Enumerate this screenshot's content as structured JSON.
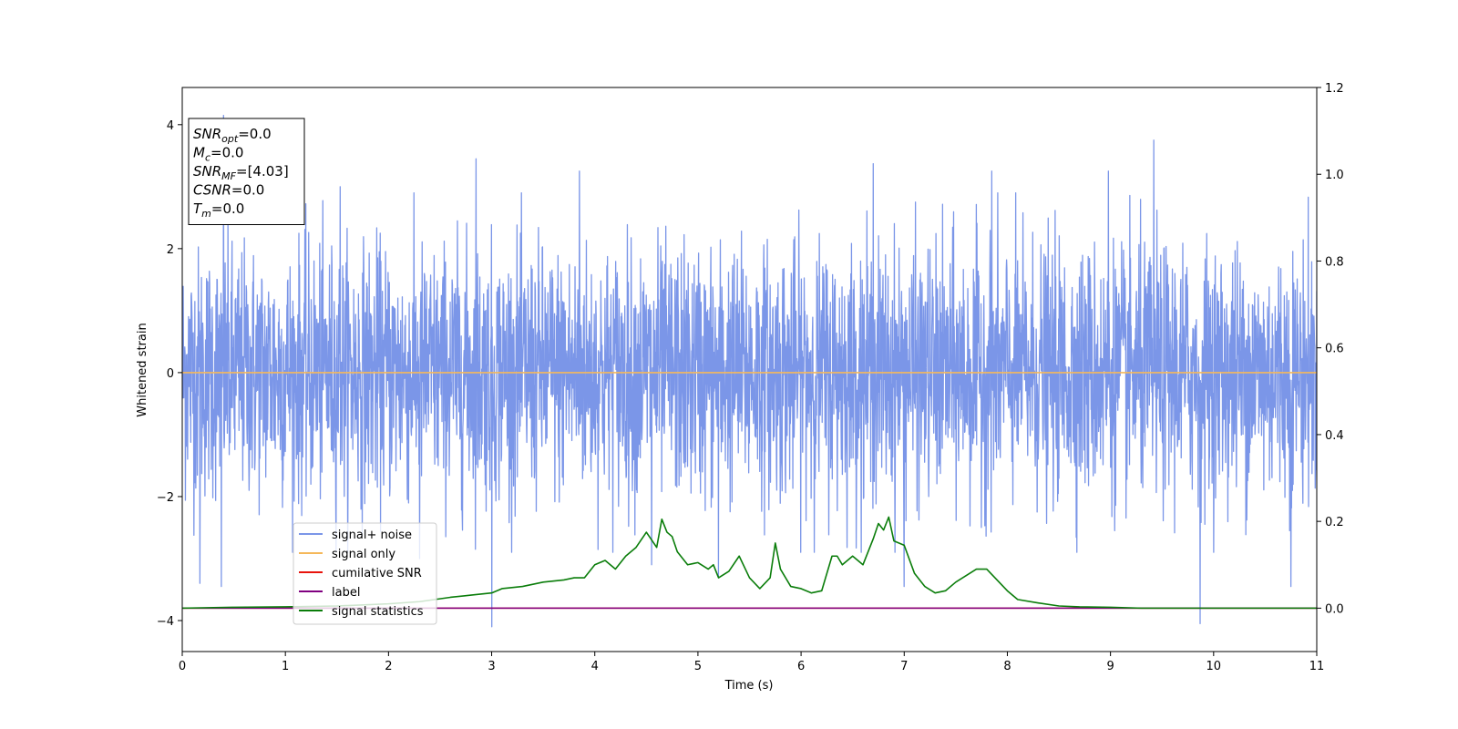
{
  "chart_data": {
    "type": "line",
    "title": "",
    "xlabel": "Time (s)",
    "ylabel": "Whitened strain",
    "xlim": [
      0,
      11
    ],
    "ylim": [
      -4.5,
      4.6
    ],
    "y2lim": [
      -0.1,
      1.2
    ],
    "grid": false,
    "legend_position": "lower-left",
    "x_ticks": [
      "0",
      "1",
      "2",
      "3",
      "4",
      "5",
      "6",
      "7",
      "8",
      "9",
      "10",
      "11"
    ],
    "y_ticks": [
      {
        "value": -4,
        "label": "−4"
      },
      {
        "value": -2,
        "label": "−2"
      },
      {
        "value": 0,
        "label": "0"
      },
      {
        "value": 2,
        "label": "2"
      },
      {
        "value": 4,
        "label": "4"
      }
    ],
    "y2_ticks": [
      "0.0",
      "0.2",
      "0.4",
      "0.6",
      "0.8",
      "1.0",
      "1.2"
    ],
    "stats_box": [
      {
        "symbol": "SNR",
        "sub": "opt",
        "value": "=0.0"
      },
      {
        "symbol": "M",
        "sub": "c",
        "value": "=0.0"
      },
      {
        "symbol": "SNR",
        "sub": "MF",
        "value": "=[4.03]"
      },
      {
        "symbol": "CSNR",
        "sub": "",
        "value": "=0.0"
      },
      {
        "symbol": "T",
        "sub": "m",
        "value": "=0.0"
      }
    ],
    "series": [
      {
        "name": "signal+ noise",
        "color": "#7b96e8",
        "axis": "left",
        "kind": "noise",
        "band_typical": 1.8,
        "peaks": [
          {
            "x": 0.4,
            "y": 4.15
          },
          {
            "x": 0.17,
            "y": -3.4
          },
          {
            "x": 0.38,
            "y": -3.45
          },
          {
            "x": 2.85,
            "y": 3.45
          },
          {
            "x": 3.0,
            "y": -4.1
          },
          {
            "x": 6.7,
            "y": 3.37
          },
          {
            "x": 9.42,
            "y": 3.75
          },
          {
            "x": 9.87,
            "y": -4.05
          },
          {
            "x": 7.0,
            "y": -3.45
          },
          {
            "x": 10.75,
            "y": -3.45
          },
          {
            "x": 1.53,
            "y": 3.0
          },
          {
            "x": 3.85,
            "y": 3.25
          },
          {
            "x": 7.85,
            "y": 3.25
          },
          {
            "x": 8.98,
            "y": 3.25
          },
          {
            "x": 4.55,
            "y": -3.1
          },
          {
            "x": 2.3,
            "y": -3.0
          },
          {
            "x": 5.2,
            "y": -3.3
          }
        ]
      },
      {
        "name": "signal only",
        "color": "#f5b85a",
        "axis": "left",
        "x": [
          0,
          11
        ],
        "y": [
          0,
          0
        ]
      },
      {
        "name": "cumilative SNR",
        "color": "#e8140c",
        "axis": "right",
        "x": [
          0,
          11
        ],
        "y": [
          0.0,
          0.0
        ]
      },
      {
        "name": "label",
        "color": "#800080",
        "axis": "right",
        "x": [
          0,
          11
        ],
        "y": [
          0.0,
          0.0
        ]
      },
      {
        "name": "signal statistics",
        "color": "#0a7d0a",
        "axis": "right",
        "x": [
          0,
          0.5,
          1.0,
          1.5,
          2.0,
          2.3,
          2.6,
          2.8,
          3.0,
          3.1,
          3.3,
          3.5,
          3.7,
          3.8,
          3.9,
          4.0,
          4.1,
          4.2,
          4.3,
          4.4,
          4.5,
          4.6,
          4.65,
          4.7,
          4.75,
          4.8,
          4.9,
          5.0,
          5.1,
          5.15,
          5.2,
          5.3,
          5.4,
          5.5,
          5.6,
          5.7,
          5.75,
          5.8,
          5.9,
          6.0,
          6.1,
          6.2,
          6.3,
          6.35,
          6.4,
          6.5,
          6.6,
          6.7,
          6.75,
          6.8,
          6.85,
          6.9,
          7.0,
          7.1,
          7.2,
          7.3,
          7.4,
          7.5,
          7.6,
          7.7,
          7.8,
          7.9,
          8.0,
          8.1,
          8.3,
          8.5,
          8.7,
          9.0,
          9.3,
          10.0,
          11.0
        ],
        "y": [
          0.0,
          0.002,
          0.003,
          0.005,
          0.01,
          0.015,
          0.025,
          0.03,
          0.035,
          0.045,
          0.05,
          0.06,
          0.065,
          0.07,
          0.07,
          0.1,
          0.11,
          0.09,
          0.12,
          0.14,
          0.175,
          0.14,
          0.205,
          0.175,
          0.165,
          0.13,
          0.1,
          0.105,
          0.09,
          0.1,
          0.07,
          0.085,
          0.12,
          0.07,
          0.045,
          0.07,
          0.15,
          0.09,
          0.05,
          0.045,
          0.035,
          0.04,
          0.12,
          0.12,
          0.1,
          0.12,
          0.1,
          0.16,
          0.195,
          0.18,
          0.21,
          0.155,
          0.145,
          0.08,
          0.05,
          0.035,
          0.04,
          0.06,
          0.075,
          0.09,
          0.09,
          0.065,
          0.04,
          0.02,
          0.012,
          0.005,
          0.003,
          0.002,
          0.0,
          0.0,
          0.0
        ]
      }
    ]
  }
}
